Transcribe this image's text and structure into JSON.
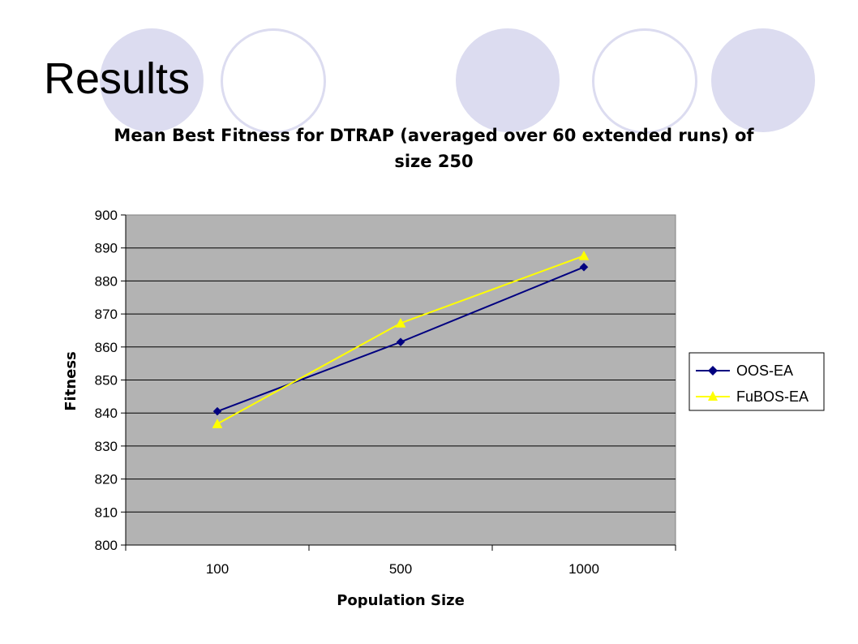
{
  "slide": {
    "title": "Results",
    "colors": {
      "circle": "#dcdcf0"
    }
  },
  "chart_data": {
    "type": "line",
    "title_lines": [
      "Mean Best Fitness for DTRAP (averaged over 60 extended runs) of",
      "size 250"
    ],
    "xlabel": "Population Size",
    "ylabel": "Fitness",
    "categories": [
      "100",
      "500",
      "1000"
    ],
    "ylim": [
      800,
      900
    ],
    "ytick_step": 10,
    "grid": true,
    "plot_background": "#b3b3b3",
    "legend_position": "right",
    "series": [
      {
        "name": "OOS-EA",
        "values": [
          840.5,
          861.5,
          884.2
        ],
        "color": "#000080",
        "marker": "diamond"
      },
      {
        "name": "FuBOS-EA",
        "values": [
          836.7,
          867.2,
          887.6
        ],
        "color": "#ffff00",
        "marker": "triangle"
      }
    ]
  }
}
